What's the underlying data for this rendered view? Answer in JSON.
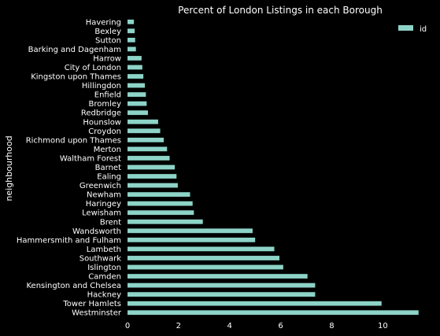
{
  "chart_data": {
    "type": "bar",
    "orientation": "horizontal",
    "title": "Percent of London Listings in each Borough",
    "ylabel": "neighbourhood",
    "xlabel": "",
    "xlim": [
      0,
      11.5
    ],
    "xticks": [
      "0",
      "2",
      "4",
      "6",
      "8",
      "10"
    ],
    "grid": false,
    "legend_position": "top-right",
    "bar_color": "#8dd3c7",
    "series": [
      {
        "name": "id",
        "categories": [
          "Westminster",
          "Tower Hamlets",
          "Hackney",
          "Kensington and Chelsea",
          "Camden",
          "Islington",
          "Southwark",
          "Lambeth",
          "Hammersmith and Fulham",
          "Wandsworth",
          "Brent",
          "Lewisham",
          "Haringey",
          "Newham",
          "Greenwich",
          "Ealing",
          "Barnet",
          "Waltham Forest",
          "Merton",
          "Richmond upon Thames",
          "Croydon",
          "Hounslow",
          "Redbridge",
          "Bromley",
          "Enfield",
          "Hillingdon",
          "Kingston upon Thames",
          "City of London",
          "Harrow",
          "Barking and Dagenham",
          "Sutton",
          "Bexley",
          "Havering"
        ],
        "values": [
          11.4,
          9.95,
          7.35,
          7.35,
          7.05,
          6.1,
          5.95,
          5.75,
          5.0,
          4.9,
          2.95,
          2.6,
          2.55,
          2.45,
          1.97,
          1.92,
          1.85,
          1.65,
          1.55,
          1.42,
          1.28,
          1.2,
          0.8,
          0.75,
          0.72,
          0.68,
          0.62,
          0.58,
          0.55,
          0.33,
          0.3,
          0.28,
          0.25
        ]
      }
    ]
  }
}
